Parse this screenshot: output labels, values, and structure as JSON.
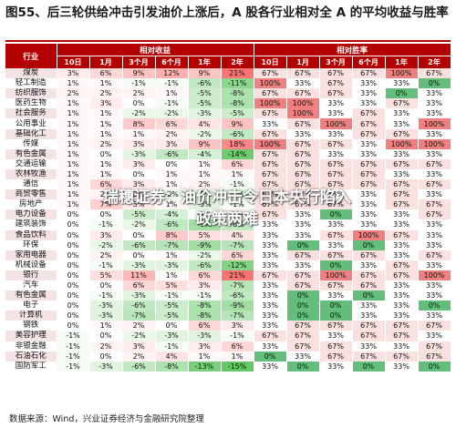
{
  "title": "图55、后三轮供给冲击引发油价上涨后，A 股各行业相对全 A 的平均收益与胜率",
  "table": {
    "industry_header": "行业",
    "group_headers": [
      "相对收益",
      "相对胜率"
    ],
    "periods": [
      "10日",
      "1月",
      "3个月",
      "6个月",
      "1年",
      "2年"
    ],
    "rows": [
      {
        "name": "煤炭",
        "ret": [
          "3%",
          "6%",
          "9%",
          "12%",
          "9%",
          "21%"
        ],
        "win": [
          "67%",
          "67%",
          "67%",
          "67%",
          "100%",
          "67%"
        ]
      },
      {
        "name": "轻工制造",
        "ret": [
          "1%",
          "1%",
          "-1%",
          "-1%",
          "-6%",
          "-11%"
        ],
        "win": [
          "100%",
          "33%",
          "67%",
          "33%",
          "33%",
          "0%"
        ]
      },
      {
        "name": "纺织服饰",
        "ret": [
          "2%",
          "2%",
          "2%",
          "1%",
          "-5%",
          "-8%"
        ],
        "win": [
          "67%",
          "67%",
          "67%",
          "33%",
          "0%",
          "33%"
        ]
      },
      {
        "name": "医药生物",
        "ret": [
          "1%",
          "3%",
          "0%",
          "-1%",
          "-5%",
          "-8%"
        ],
        "win": [
          "100%",
          "100%",
          "33%",
          "33%",
          "67%",
          "33%"
        ]
      },
      {
        "name": "社会服务",
        "ret": [
          "1%",
          "1%",
          "-2%",
          "-2%",
          "-3%",
          "-5%"
        ],
        "win": [
          "67%",
          "100%",
          "33%",
          "67%",
          "33%",
          "33%"
        ]
      },
      {
        "name": "公用事业",
        "ret": [
          "1%",
          "1%",
          "8%",
          "6%",
          "4%",
          "9%"
        ],
        "win": [
          "33%",
          "67%",
          "100%",
          "67%",
          "33%",
          "100%"
        ]
      },
      {
        "name": "基础化工",
        "ret": [
          "1%",
          "1%",
          "1%",
          "2%",
          "-2%",
          "-6%"
        ],
        "win": [
          "67%",
          "33%",
          "33%",
          "67%",
          "67%",
          "33%"
        ]
      },
      {
        "name": "传媒",
        "ret": [
          "1%",
          "2%",
          "3%",
          "3%",
          "9%",
          "18%"
        ],
        "win": [
          "100%",
          "67%",
          "67%",
          "33%",
          "100%",
          "100%"
        ]
      },
      {
        "name": "有色金属",
        "ret": [
          "1%",
          "0%",
          "-3%",
          "-6%",
          "-4%",
          "-14%"
        ],
        "win": [
          "67%",
          "67%",
          "33%",
          "33%",
          "33%",
          "33%"
        ]
      },
      {
        "name": "交通运输",
        "ret": [
          "1%",
          "1%",
          "3%",
          "0%",
          "1%",
          "6%"
        ],
        "win": [
          "67%",
          "67%",
          "67%",
          "67%",
          "67%",
          "67%"
        ]
      },
      {
        "name": "农林牧渔",
        "ret": [
          "1%",
          "1%",
          "0%",
          "1%",
          "1%",
          "1%"
        ],
        "win": [
          "67%",
          "67%",
          "67%",
          "67%",
          "33%",
          "33%"
        ]
      },
      {
        "name": "通信",
        "ret": [
          "1%",
          "6%",
          "3%",
          "1%",
          "2%",
          "-1%"
        ],
        "win": [
          "67%",
          "67%",
          "67%",
          "67%",
          "67%",
          "67%"
        ]
      },
      {
        "name": "商贸零售",
        "ret": [
          "1%",
          "2%",
          "2%",
          "-2%",
          "-3%",
          "-4%"
        ],
        "win": [
          "67%",
          "67%",
          "33%",
          "33%",
          "67%",
          "33%"
        ]
      },
      {
        "name": "房地产",
        "ret": [
          "1%",
          "7%",
          "3%",
          "1%",
          "-3%",
          "-1%"
        ],
        "win": [
          "67%",
          "67%",
          "67%",
          "33%",
          "67%",
          "67%"
        ]
      },
      {
        "name": "电力设备",
        "ret": [
          "0%",
          "0%",
          "-5%",
          "-4%",
          "-1%",
          "2%"
        ],
        "win": [
          "67%",
          "33%",
          "0%",
          "33%",
          "33%",
          "67%"
        ]
      },
      {
        "name": "建筑装饰",
        "ret": [
          "0%",
          "-1%",
          "-2%",
          "-6%",
          "-9%",
          "-6%"
        ],
        "win": [
          "33%",
          "33%",
          "33%",
          "33%",
          "33%",
          "33%"
        ]
      },
      {
        "name": "食品饮料",
        "ret": [
          "0%",
          "3%",
          "0%",
          "8%",
          "5%",
          "4%"
        ],
        "win": [
          "33%",
          "33%",
          "67%",
          "100%",
          "67%",
          "33%"
        ]
      },
      {
        "name": "环保",
        "ret": [
          "0%",
          "-2%",
          "-6%",
          "-7%",
          "-9%",
          "-7%"
        ],
        "win": [
          "33%",
          "0%",
          "33%",
          "0%",
          "33%",
          "33%"
        ]
      },
      {
        "name": "家用电器",
        "ret": [
          "0%",
          "2%",
          "0%",
          "1%",
          "-2%",
          "6%"
        ],
        "win": [
          "33%",
          "67%",
          "67%",
          "67%",
          "33%",
          "67%"
        ]
      },
      {
        "name": "机械设备",
        "ret": [
          "0%",
          "-1%",
          "-3%",
          "-3%",
          "-6%",
          "-12%"
        ],
        "win": [
          "33%",
          "33%",
          "0%",
          "33%",
          "67%",
          "33%"
        ]
      },
      {
        "name": "银行",
        "ret": [
          "0%",
          "5%",
          "11%",
          "1%",
          "6%",
          "21%"
        ],
        "win": [
          "67%",
          "67%",
          "100%",
          "67%",
          "67%",
          "100%"
        ]
      },
      {
        "name": "汽车",
        "ret": [
          "0%",
          "0%",
          "6%",
          "5%",
          "3%",
          "-7%"
        ],
        "win": [
          "33%",
          "67%",
          "67%",
          "67%",
          "33%",
          "33%"
        ]
      },
      {
        "name": "有色金属",
        "ret": [
          "0%",
          "-1%",
          "-3%",
          "-1%",
          "-1%",
          "-6%"
        ],
        "win": [
          "33%",
          "0%",
          "33%",
          "0%",
          "33%",
          "33%"
        ]
      },
      {
        "name": "电子",
        "ret": [
          "0%",
          "-3%",
          "-6%",
          "-5%",
          "-8%",
          "-9%"
        ],
        "win": [
          "33%",
          "0%",
          "0%",
          "33%",
          "33%",
          "0%"
        ]
      },
      {
        "name": "计算机",
        "ret": [
          "0%",
          "-3%",
          "-7%",
          "-5%",
          "-8%",
          "-7%"
        ],
        "win": [
          "33%",
          "0%",
          "0%",
          "33%",
          "33%",
          "33%"
        ]
      },
      {
        "name": "钢铁",
        "ret": [
          "0%",
          "1%",
          "2%",
          "0%",
          "6%",
          "3%"
        ],
        "win": [
          "33%",
          "67%",
          "67%",
          "67%",
          "67%",
          "67%"
        ]
      },
      {
        "name": "美容护理",
        "ret": [
          "-1%",
          "0%",
          "-2%",
          "-3%",
          "-3%",
          "-1%"
        ],
        "win": [
          "67%",
          "67%",
          "33%",
          "67%",
          "67%",
          "33%"
        ]
      },
      {
        "name": "非银金融",
        "ret": [
          "-1%",
          "2%",
          "3%",
          "-1%",
          "3%",
          "6%"
        ],
        "win": [
          "33%",
          "67%",
          "67%",
          "33%",
          "33%",
          "67%"
        ]
      },
      {
        "name": "石油石化",
        "ret": [
          "-1%",
          "0%",
          "2%",
          "4%",
          "1%",
          "1%"
        ],
        "win": [
          "0%",
          "33%",
          "67%",
          "67%",
          "67%",
          "67%"
        ]
      },
      {
        "name": "国防军工",
        "ret": [
          "-1%",
          "-3%",
          "-6%",
          "-8%",
          "-13%",
          "-15%"
        ],
        "win": [
          "33%",
          "0%",
          "33%",
          "0%",
          "33%",
          "0%"
        ]
      }
    ]
  },
  "overlay": {
    "line1": "瑞穗证券：油价冲击令日本央行陷入",
    "line2": "政策两难"
  },
  "source": "数据来源：Wind，兴业证券经济与金融研究院整理"
}
